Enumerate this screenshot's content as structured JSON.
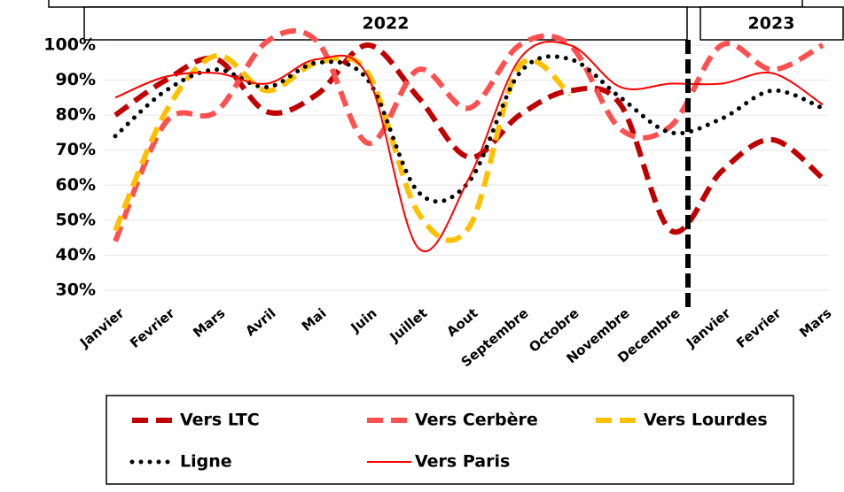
{
  "chart_data": {
    "type": "line",
    "period_labels": [
      "2022",
      "2023"
    ],
    "categories": [
      "Janvier",
      "Fevrier",
      "Mars",
      "Avril",
      "Mai",
      "Juin",
      "Juillet",
      "Aout",
      "Septembre",
      "Octobre",
      "Novembre",
      "Decembre",
      "Janvier",
      "Fevrier",
      "Mars"
    ],
    "series": [
      {
        "name": "Vers LTC",
        "color": "#c00000",
        "style": "dashed",
        "values": [
          80,
          90,
          96,
          81,
          86,
          100,
          85,
          68,
          80,
          87,
          83,
          47,
          64,
          73,
          62
        ]
      },
      {
        "name": "Vers Cerbère",
        "color": "#ff5050",
        "style": "dashed",
        "values": [
          44,
          78,
          81,
          101,
          101,
          72,
          93,
          82,
          100,
          100,
          76,
          77,
          100,
          93,
          100
        ]
      },
      {
        "name": "Vers Lourdes",
        "color": "#ffc000",
        "style": "dashed",
        "values": [
          47,
          81,
          97,
          87,
          95,
          92,
          52,
          48,
          94,
          86,
          null,
          null,
          null,
          null,
          null
        ]
      },
      {
        "name": "Ligne",
        "color": "#000000",
        "style": "dotted",
        "values": [
          74,
          87,
          93,
          88,
          95,
          90,
          58,
          61,
          92,
          96,
          85,
          75,
          79,
          87,
          82
        ]
      },
      {
        "name": "Vers Paris",
        "color": "#ff0000",
        "style": "solid",
        "values": [
          85,
          91,
          92,
          89,
          96,
          91,
          42,
          62,
          96,
          100,
          88,
          89,
          89,
          92,
          83
        ]
      }
    ],
    "ylim": [
      28,
      103
    ],
    "yticks": [
      {
        "value": 30,
        "label": "30%"
      },
      {
        "value": 40,
        "label": "40%"
      },
      {
        "value": 50,
        "label": "50%"
      },
      {
        "value": 60,
        "label": "60%"
      },
      {
        "value": 70,
        "label": "70%"
      },
      {
        "value": 80,
        "label": "80%"
      },
      {
        "value": 90,
        "label": "90%"
      },
      {
        "value": 100,
        "label": "100%"
      }
    ],
    "grid": true
  }
}
